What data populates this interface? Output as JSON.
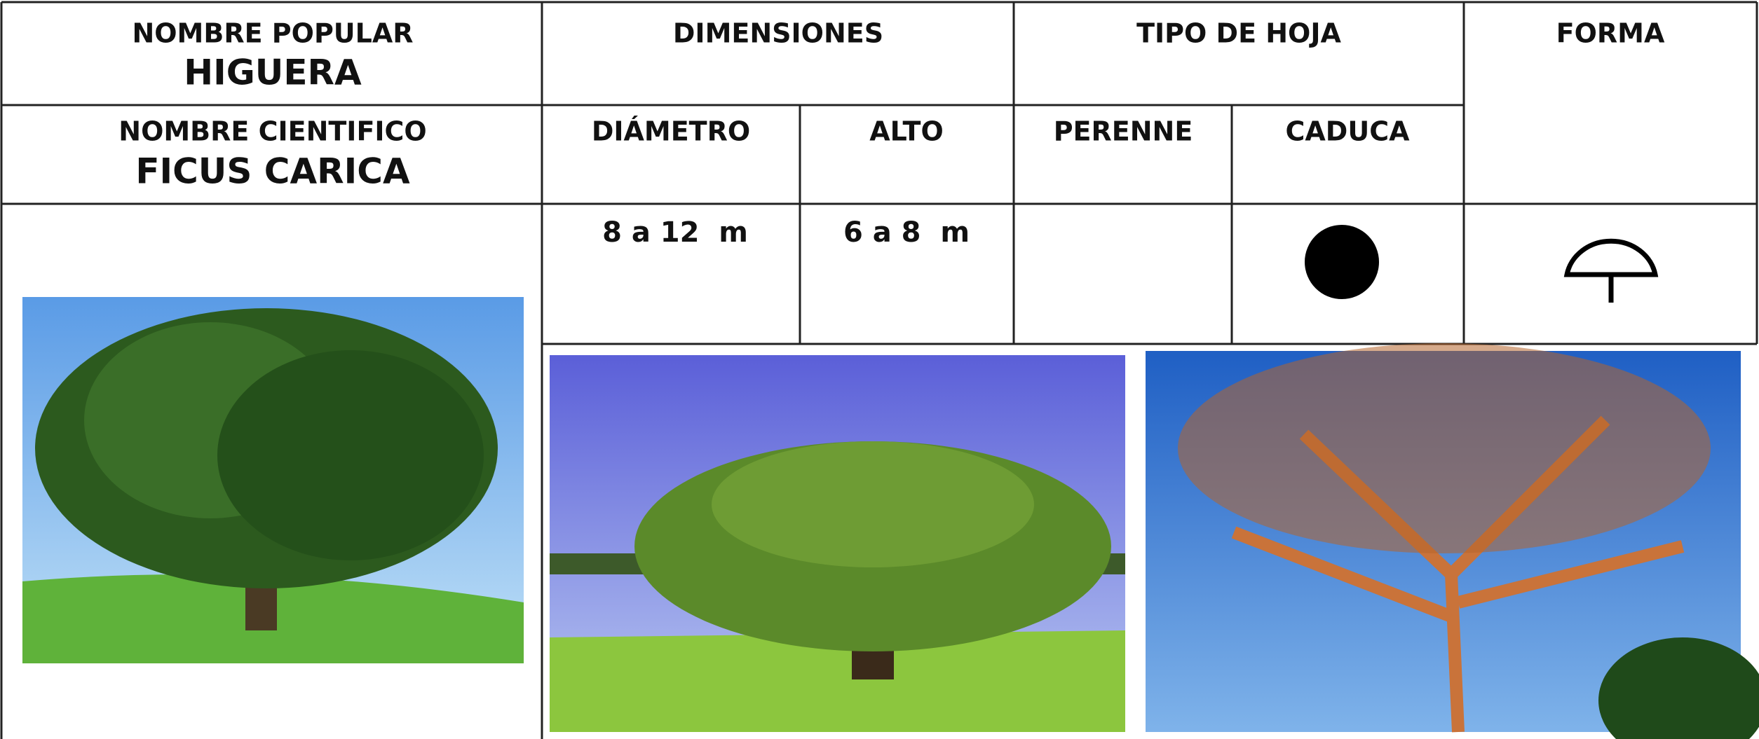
{
  "header": {
    "popular_label": "NOMBRE POPULAR",
    "popular_name": "HIGUERA",
    "scientific_label": "NOMBRE CIENTIFICO",
    "scientific_name": "FICUS CARICA"
  },
  "columns": {
    "dimensions": {
      "title": "DIMENSIONES",
      "diameter": "DIÁMETRO",
      "height": "ALTO"
    },
    "leaf_type": {
      "title": "TIPO DE HOJA",
      "evergreen": "PERENNE",
      "deciduous": "CADUCA"
    },
    "shape": {
      "title": "FORMA"
    }
  },
  "values": {
    "diameter": "8 a 12  m",
    "height": "6 a 8  m"
  }
}
